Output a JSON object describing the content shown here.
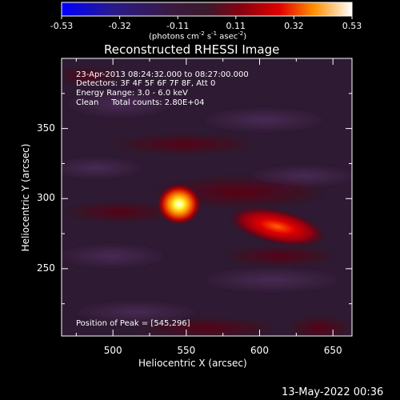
{
  "colorbar": {
    "tick_labels": [
      "-0.53",
      "-0.32",
      "-0.11",
      "0.11",
      "0.32",
      "0.53"
    ],
    "units_prefix": "(photons cm",
    "units_exp1": "-2",
    "units_mid": " s",
    "units_exp2": "-1",
    "units_mid2": " asec",
    "units_exp3": "-2",
    "units_suffix": ")"
  },
  "chart_data": {
    "type": "heatmap",
    "title": "Reconstructed RHESSI Image",
    "xlabel": "Heliocentric X (arcsec)",
    "ylabel": "Heliocentric Y (arcsec)",
    "xlim": [
      465,
      663
    ],
    "ylim": [
      202,
      400
    ],
    "x_ticks": [
      500,
      550,
      600,
      650
    ],
    "y_ticks": [
      250,
      300,
      350
    ],
    "value_range": [
      -0.53,
      0.53
    ],
    "colormap": [
      "#0000ff",
      "#1a1a7a",
      "#2a1a40",
      "#3a1a3a",
      "#8a0000",
      "#e00000",
      "#ff8000",
      "#ffd000",
      "#ffffff"
    ],
    "sources": [
      {
        "name": "peak",
        "x": 545,
        "y": 296,
        "intensity": 0.53
      },
      {
        "name": "secondary",
        "x": 612,
        "y": 280,
        "intensity": 0.33
      }
    ],
    "annotations": [
      "23-Apr-2013 08:24:32.000 to 08:27:00.000",
      "Detectors: 3F 4F 5F 6F 7F 8F, Att 0",
      "Energy Range: 3.0 - 6.0 keV",
      "Clean     Total counts: 2.80E+04",
      "Position of Peak = [545,296]"
    ],
    "grid": false
  },
  "footer": {
    "timestamp": "13-May-2022 00:36"
  }
}
